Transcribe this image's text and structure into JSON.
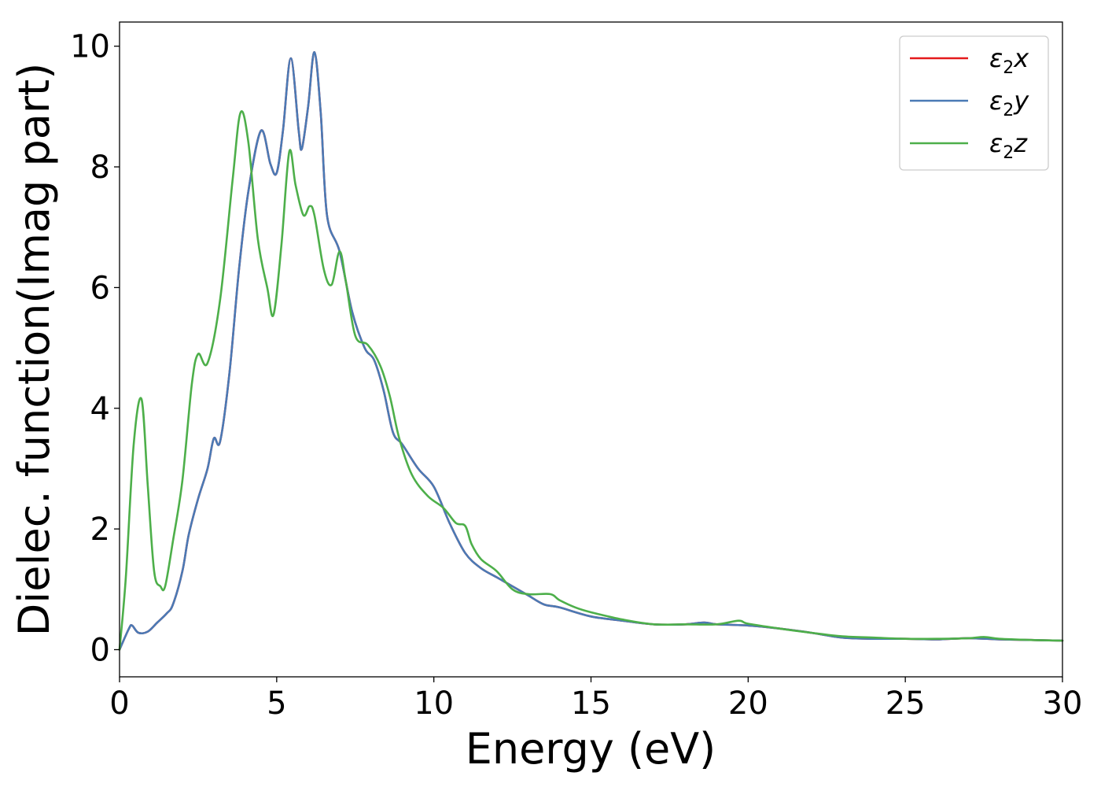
{
  "chart_data": {
    "type": "line",
    "xlabel": "Energy (eV)",
    "ylabel": "Dielec. function(Imag part)",
    "xlim": [
      0,
      30
    ],
    "ylim": [
      -0.45,
      10.4
    ],
    "xticks": [
      0,
      5,
      10,
      15,
      20,
      25,
      30
    ],
    "yticks": [
      0,
      2,
      4,
      6,
      8,
      10
    ],
    "xtick_labels": [
      "0",
      "5",
      "10",
      "15",
      "20",
      "25",
      "30"
    ],
    "ytick_labels": [
      "0",
      "2",
      "4",
      "6",
      "8",
      "10"
    ],
    "grid": false,
    "legend_position": "top-right",
    "series": [
      {
        "name": "ε2x",
        "legend_base": "ε",
        "legend_sub": "2",
        "legend_tail": "x",
        "color": "#e41a1c",
        "x": [
          0,
          0.3,
          0.4,
          0.6,
          0.9,
          1.2,
          1.5,
          1.7,
          2.0,
          2.2,
          2.5,
          2.8,
          3.0,
          3.2,
          3.5,
          3.8,
          4.1,
          4.5,
          4.8,
          5.0,
          5.2,
          5.45,
          5.7,
          5.8,
          6.0,
          6.2,
          6.4,
          6.6,
          7.0,
          7.4,
          7.8,
          8.1,
          8.4,
          8.7,
          9.0,
          9.5,
          10.0,
          10.5,
          11.0,
          11.5,
          12.0,
          12.5,
          13.0,
          13.5,
          14.0,
          15.0,
          16.0,
          17.0,
          18.0,
          18.6,
          19.0,
          20.0,
          21.0,
          22.0,
          23.0,
          24.0,
          25.0,
          26.0,
          27.0,
          28.0,
          29.0,
          30.0
        ],
        "y": [
          0,
          0.35,
          0.4,
          0.28,
          0.3,
          0.45,
          0.6,
          0.75,
          1.3,
          1.9,
          2.5,
          3.0,
          3.5,
          3.45,
          4.6,
          6.3,
          7.6,
          8.6,
          8.05,
          7.9,
          8.6,
          9.8,
          8.6,
          8.3,
          9.0,
          9.9,
          8.9,
          7.2,
          6.6,
          5.6,
          5.0,
          4.8,
          4.3,
          3.6,
          3.4,
          3.0,
          2.7,
          2.1,
          1.6,
          1.35,
          1.2,
          1.05,
          0.9,
          0.75,
          0.7,
          0.55,
          0.48,
          0.42,
          0.42,
          0.45,
          0.42,
          0.4,
          0.35,
          0.28,
          0.2,
          0.18,
          0.18,
          0.17,
          0.19,
          0.17,
          0.16,
          0.15
        ]
      },
      {
        "name": "ε2y",
        "legend_base": "ε",
        "legend_sub": "2",
        "legend_tail": "y",
        "color": "#4a7ab5",
        "x": [
          0,
          0.3,
          0.4,
          0.6,
          0.9,
          1.2,
          1.5,
          1.7,
          2.0,
          2.2,
          2.5,
          2.8,
          3.0,
          3.2,
          3.5,
          3.8,
          4.1,
          4.5,
          4.8,
          5.0,
          5.2,
          5.45,
          5.7,
          5.8,
          6.0,
          6.2,
          6.4,
          6.6,
          7.0,
          7.4,
          7.8,
          8.1,
          8.4,
          8.7,
          9.0,
          9.5,
          10.0,
          10.5,
          11.0,
          11.5,
          12.0,
          12.5,
          13.0,
          13.5,
          14.0,
          15.0,
          16.0,
          17.0,
          18.0,
          18.6,
          19.0,
          20.0,
          21.0,
          22.0,
          23.0,
          24.0,
          25.0,
          26.0,
          27.0,
          28.0,
          29.0,
          30.0
        ],
        "y": [
          0,
          0.35,
          0.4,
          0.28,
          0.3,
          0.45,
          0.6,
          0.75,
          1.3,
          1.9,
          2.5,
          3.0,
          3.5,
          3.45,
          4.6,
          6.3,
          7.6,
          8.6,
          8.05,
          7.9,
          8.6,
          9.8,
          8.6,
          8.3,
          9.0,
          9.9,
          8.9,
          7.2,
          6.6,
          5.6,
          5.0,
          4.8,
          4.3,
          3.6,
          3.4,
          3.0,
          2.7,
          2.1,
          1.6,
          1.35,
          1.2,
          1.05,
          0.9,
          0.75,
          0.7,
          0.55,
          0.48,
          0.42,
          0.42,
          0.45,
          0.42,
          0.4,
          0.35,
          0.28,
          0.2,
          0.18,
          0.18,
          0.17,
          0.19,
          0.17,
          0.16,
          0.15
        ]
      },
      {
        "name": "ε2z",
        "legend_base": "ε",
        "legend_sub": "2",
        "legend_tail": "z",
        "color": "#4daf4a",
        "x": [
          0,
          0.2,
          0.45,
          0.7,
          0.9,
          1.1,
          1.3,
          1.45,
          1.7,
          2.0,
          2.3,
          2.5,
          2.8,
          3.2,
          3.6,
          3.85,
          4.1,
          4.4,
          4.7,
          4.9,
          5.15,
          5.4,
          5.6,
          5.85,
          6.05,
          6.2,
          6.5,
          6.75,
          7.0,
          7.2,
          7.5,
          7.9,
          8.3,
          8.6,
          8.9,
          9.3,
          9.8,
          10.3,
          10.7,
          11.0,
          11.2,
          11.5,
          12.0,
          12.5,
          13.0,
          13.7,
          14.0,
          14.5,
          15.0,
          16.0,
          17.0,
          18.0,
          19.0,
          19.7,
          20.0,
          21.0,
          22.0,
          23.0,
          24.0,
          25.0,
          26.0,
          27.0,
          27.5,
          28.0,
          29.0,
          30.0
        ],
        "y": [
          0,
          1.2,
          3.4,
          4.15,
          2.7,
          1.3,
          1.05,
          1.05,
          1.8,
          2.8,
          4.4,
          4.9,
          4.75,
          5.8,
          7.8,
          8.9,
          8.4,
          6.8,
          6.0,
          5.55,
          6.7,
          8.25,
          7.7,
          7.2,
          7.35,
          7.2,
          6.3,
          6.05,
          6.6,
          6.1,
          5.2,
          5.05,
          4.7,
          4.2,
          3.5,
          2.9,
          2.55,
          2.35,
          2.1,
          2.05,
          1.75,
          1.5,
          1.3,
          1.0,
          0.92,
          0.92,
          0.82,
          0.7,
          0.62,
          0.5,
          0.42,
          0.42,
          0.42,
          0.48,
          0.43,
          0.35,
          0.28,
          0.22,
          0.2,
          0.18,
          0.18,
          0.19,
          0.21,
          0.18,
          0.16,
          0.15
        ]
      }
    ]
  }
}
